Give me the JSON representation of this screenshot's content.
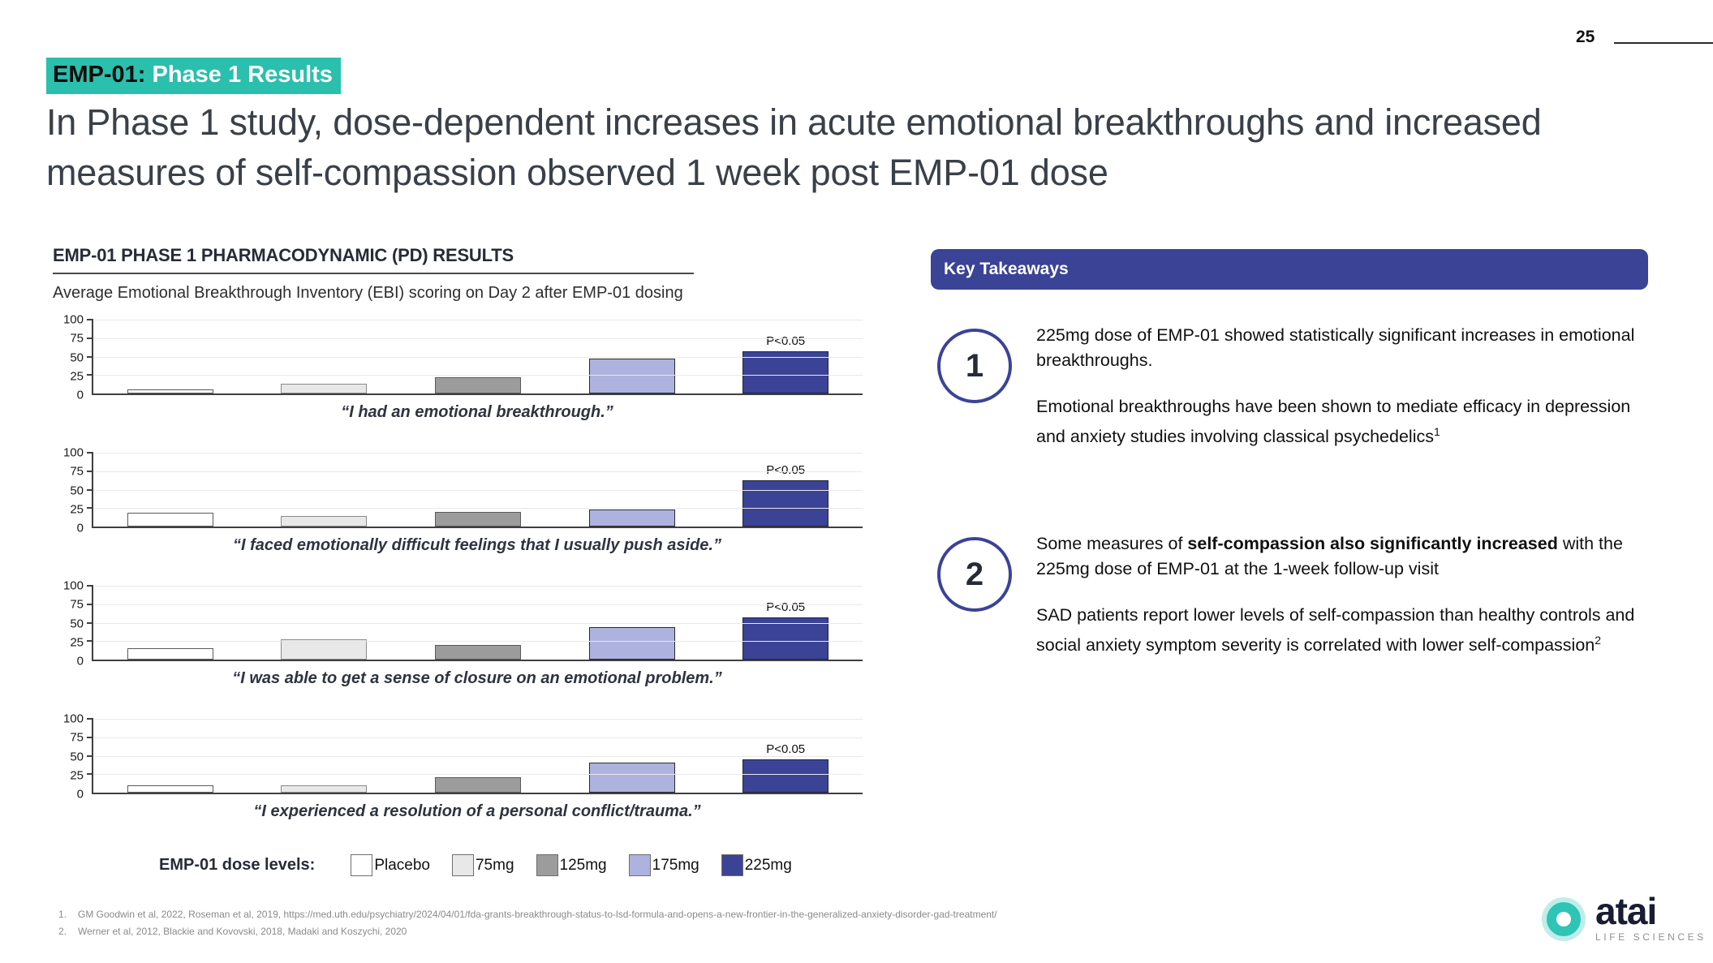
{
  "page": {
    "number": "25"
  },
  "tag": {
    "prefix": "EMP-01:",
    "suffix": " Phase 1 Results"
  },
  "title_lines": [
    "In Phase 1 study, dose-dependent increases in acute emotional breakthroughs and increased",
    "measures of self-compassion observed 1 week post EMP-01 dose"
  ],
  "pd_section": {
    "heading": "EMP-01 PHASE 1 PHARMACODYNAMIC (PD) RESULTS",
    "subtitle": "Average Emotional Breakthrough Inventory (EBI) scoring on Day 2 after EMP-01 dosing"
  },
  "chart_data": [
    {
      "type": "bar",
      "caption": "“I had an emotional breakthrough.”",
      "categories": [
        "Placebo",
        "75mg",
        "125mg",
        "175mg",
        "225mg"
      ],
      "values": [
        5,
        13,
        21,
        46,
        56
      ],
      "ylim": [
        0,
        100
      ],
      "yticks": [
        0,
        25,
        50,
        75,
        100
      ],
      "grid": true,
      "annotation": {
        "category": "225mg",
        "label": "P<0.05"
      }
    },
    {
      "type": "bar",
      "caption": "“I faced emotionally difficult feelings that I usually push aside.”",
      "categories": [
        "Placebo",
        "75mg",
        "125mg",
        "175mg",
        "225mg"
      ],
      "values": [
        18,
        14,
        19,
        23,
        61
      ],
      "ylim": [
        0,
        100
      ],
      "yticks": [
        0,
        25,
        50,
        75,
        100
      ],
      "grid": true,
      "annotation": {
        "category": "225mg",
        "label": "P<0.05"
      }
    },
    {
      "type": "bar",
      "caption": "“I was able to get a sense of closure on an emotional problem.”",
      "categories": [
        "Placebo",
        "75mg",
        "125mg",
        "175mg",
        "225mg"
      ],
      "values": [
        15,
        27,
        19,
        43,
        56
      ],
      "ylim": [
        0,
        100
      ],
      "yticks": [
        0,
        25,
        50,
        75,
        100
      ],
      "grid": true,
      "annotation": {
        "category": "225mg",
        "label": "P<0.05"
      }
    },
    {
      "type": "bar",
      "caption": "“I experienced a resolution of a personal conflict/trauma.”",
      "categories": [
        "Placebo",
        "75mg",
        "125mg",
        "175mg",
        "225mg"
      ],
      "values": [
        10,
        10,
        20,
        40,
        44
      ],
      "ylim": [
        0,
        100
      ],
      "yticks": [
        0,
        25,
        50,
        75,
        100
      ],
      "grid": true,
      "annotation": {
        "category": "225mg",
        "label": "P<0.05"
      }
    }
  ],
  "legend": {
    "label": "EMP-01 dose levels:",
    "items": [
      {
        "label": "Placebo",
        "color": "#FFFFFF",
        "border": "#5a5a5a"
      },
      {
        "label": "75mg",
        "color": "#E8E8E8",
        "border": "#8a8a8a"
      },
      {
        "label": "125mg",
        "color": "#9C9C9C",
        "border": "#5a5a5a"
      },
      {
        "label": "175mg",
        "color": "#AEB2DF",
        "border": "#2b2b2b"
      },
      {
        "label": "225mg",
        "color": "#3B4397",
        "border": "#20243F"
      }
    ]
  },
  "key_takeaways": {
    "header": "Key Takeaways",
    "items": [
      {
        "number": "1",
        "paragraphs": [
          [
            {
              "t": "225mg dose of EMP-01 showed statistically significant increases in emotional breakthroughs."
            }
          ],
          [
            {
              "t": "Emotional breakthroughs have been shown to mediate efficacy in depression and anxiety studies involving classical psychedelics"
            },
            {
              "t": "1",
              "sup": true
            }
          ]
        ]
      },
      {
        "number": "2",
        "paragraphs": [
          [
            {
              "t": "Some measures of "
            },
            {
              "t": "self-compassion also significantly increased",
              "b": true
            },
            {
              "t": " with the 225mg dose of EMP-01 at the 1-week follow-up visit"
            }
          ],
          [
            {
              "t": "SAD patients report lower levels of self-compassion than healthy controls and social anxiety symptom severity is correlated with lower self-compassion"
            },
            {
              "t": "2",
              "sup": true
            }
          ]
        ]
      }
    ]
  },
  "footnotes": [
    {
      "num": "1.",
      "text": "GM Goodwin et al, 2022, Roseman et al, 2019, https://med.uth.edu/psychiatry/2024/04/01/fda-grants-breakthrough-status-to-lsd-formula-and-opens-a-new-frontier-in-the-generalized-anxiety-disorder-gad-treatment/"
    },
    {
      "num": "2.",
      "text": "Werner et al, 2012, Blackie and Kovovski, 2018, Madaki and Koszychi, 2020"
    }
  ],
  "logo": {
    "brand": "atai",
    "tagline": "LIFE SCIENCES"
  },
  "colors": {
    "accent_teal": "#2BBFAD",
    "indigo": "#3B4397",
    "logo_teal": "#2EC4B6",
    "gridline": "#E9E9E9",
    "title_text": "#3A4049",
    "footnote_gray": "#8A8A8A"
  }
}
